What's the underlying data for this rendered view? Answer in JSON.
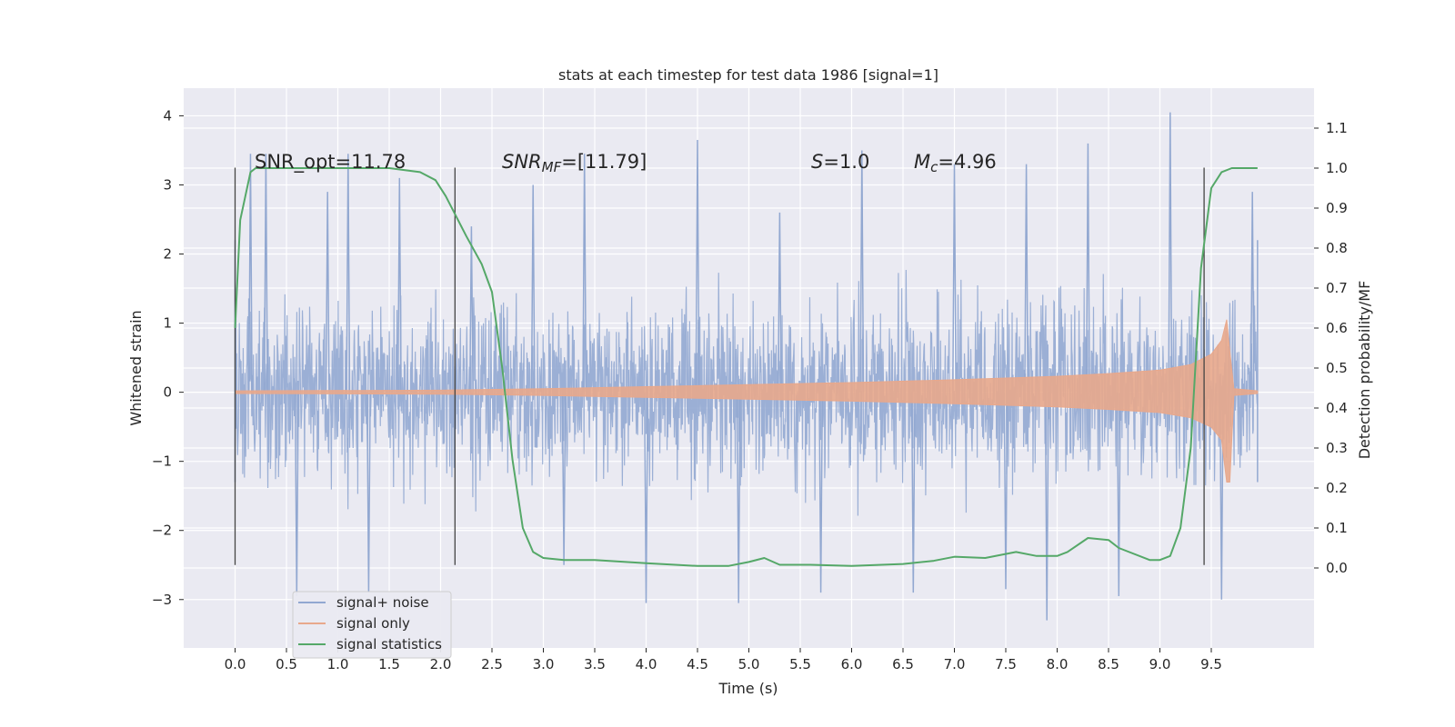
{
  "chart_data": {
    "type": "line",
    "title": "stats at each timestep for test data 1986 [signal=1]",
    "xlabel": "Time (s)",
    "ylabel": "Whitened strain",
    "ylabel_right": "Detection probability/MF",
    "xlim": [
      -0.5,
      10.5
    ],
    "ylim": [
      -3.7,
      4.4
    ],
    "ylim_right": [
      -0.2,
      1.2
    ],
    "x_ticks": [
      "0.0",
      "0.5",
      "1.0",
      "1.5",
      "2.0",
      "2.5",
      "3.0",
      "3.5",
      "4.0",
      "4.5",
      "5.0",
      "5.5",
      "6.0",
      "6.5",
      "7.0",
      "7.5",
      "8.0",
      "8.5",
      "9.0",
      "9.5"
    ],
    "x_tick_values": [
      0,
      0.5,
      1,
      1.5,
      2,
      2.5,
      3,
      3.5,
      4,
      4.5,
      5,
      5.5,
      6,
      6.5,
      7,
      7.5,
      8,
      8.5,
      9,
      9.5
    ],
    "y_ticks": [
      "−3",
      "−2",
      "−1",
      "0",
      "1",
      "2",
      "3",
      "4"
    ],
    "y_tick_values": [
      -3,
      -2,
      -1,
      0,
      1,
      2,
      3,
      4
    ],
    "y_ticks_right": [
      "0.0",
      "0.1",
      "0.2",
      "0.3",
      "0.4",
      "0.5",
      "0.6",
      "0.7",
      "0.8",
      "0.9",
      "1.0",
      "1.1"
    ],
    "y_tick_values_right": [
      0,
      0.1,
      0.2,
      0.3,
      0.4,
      0.5,
      0.6,
      0.7,
      0.8,
      0.9,
      1.0,
      1.1
    ],
    "grid": true,
    "legend_position": "lower-left",
    "series": [
      {
        "name": "signal+ noise",
        "color": "#92a8d1",
        "axis": "left",
        "x_range": [
          0,
          9.95
        ],
        "envelope_typical": 1.5,
        "extremes": [
          {
            "x": 0.15,
            "y": 3.45
          },
          {
            "x": 0.3,
            "y": 3.45
          },
          {
            "x": 0.9,
            "y": 2.9
          },
          {
            "x": 1.1,
            "y": 3.45
          },
          {
            "x": 1.6,
            "y": 3.1
          },
          {
            "x": 2.3,
            "y": 2.4
          },
          {
            "x": 2.9,
            "y": 3.0
          },
          {
            "x": 3.4,
            "y": 3.45
          },
          {
            "x": 4.5,
            "y": 3.65
          },
          {
            "x": 5.3,
            "y": 2.6
          },
          {
            "x": 6.1,
            "y": 3.5
          },
          {
            "x": 7.0,
            "y": 3.3
          },
          {
            "x": 7.7,
            "y": 3.3
          },
          {
            "x": 8.3,
            "y": 3.6
          },
          {
            "x": 9.1,
            "y": 4.05
          },
          {
            "x": 9.9,
            "y": 2.9
          },
          {
            "x": 0.6,
            "y": -2.95
          },
          {
            "x": 1.3,
            "y": -2.9
          },
          {
            "x": 3.2,
            "y": -2.5
          },
          {
            "x": 4.0,
            "y": -3.05
          },
          {
            "x": 4.9,
            "y": -3.05
          },
          {
            "x": 5.7,
            "y": -2.9
          },
          {
            "x": 6.6,
            "y": -2.9
          },
          {
            "x": 7.5,
            "y": -2.85
          },
          {
            "x": 7.9,
            "y": -3.3
          },
          {
            "x": 8.6,
            "y": -2.95
          },
          {
            "x": 9.6,
            "y": -3.0
          }
        ]
      },
      {
        "name": "signal only",
        "color": "#e8a88c",
        "axis": "left",
        "envelope": [
          {
            "x": 0.0,
            "y": 0.02
          },
          {
            "x": 2.0,
            "y": 0.03
          },
          {
            "x": 3.0,
            "y": 0.05
          },
          {
            "x": 4.0,
            "y": 0.08
          },
          {
            "x": 5.0,
            "y": 0.11
          },
          {
            "x": 6.0,
            "y": 0.14
          },
          {
            "x": 7.0,
            "y": 0.18
          },
          {
            "x": 8.0,
            "y": 0.23
          },
          {
            "x": 8.5,
            "y": 0.27
          },
          {
            "x": 9.0,
            "y": 0.32
          },
          {
            "x": 9.3,
            "y": 0.4
          },
          {
            "x": 9.5,
            "y": 0.55
          },
          {
            "x": 9.6,
            "y": 0.75
          },
          {
            "x": 9.65,
            "y": 1.05
          },
          {
            "x": 9.68,
            "y": 0.6
          },
          {
            "x": 9.72,
            "y": 0.05
          },
          {
            "x": 9.95,
            "y": 0.02
          }
        ]
      },
      {
        "name": "signal statistics",
        "color": "#55a868",
        "axis": "right",
        "x": [
          0.0,
          0.05,
          0.1,
          0.15,
          0.2,
          0.3,
          0.5,
          1.0,
          1.5,
          1.8,
          1.95,
          2.05,
          2.15,
          2.25,
          2.4,
          2.5,
          2.6,
          2.7,
          2.8,
          2.9,
          3.0,
          3.2,
          3.5,
          4.0,
          4.5,
          4.8,
          5.0,
          5.15,
          5.3,
          5.6,
          6.0,
          6.5,
          6.8,
          7.0,
          7.3,
          7.6,
          7.8,
          8.0,
          8.1,
          8.3,
          8.5,
          8.6,
          8.9,
          9.0,
          9.1,
          9.2,
          9.3,
          9.4,
          9.5,
          9.6,
          9.7,
          9.8,
          9.95
        ],
        "y": [
          0.6,
          0.87,
          0.93,
          0.99,
          1.0,
          1.0,
          1.0,
          1.0,
          1.0,
          0.99,
          0.97,
          0.93,
          0.88,
          0.83,
          0.76,
          0.69,
          0.5,
          0.27,
          0.1,
          0.04,
          0.025,
          0.02,
          0.02,
          0.012,
          0.005,
          0.005,
          0.015,
          0.025,
          0.008,
          0.008,
          0.005,
          0.01,
          0.018,
          0.028,
          0.025,
          0.04,
          0.03,
          0.03,
          0.04,
          0.075,
          0.07,
          0.05,
          0.02,
          0.02,
          0.03,
          0.1,
          0.3,
          0.75,
          0.95,
          0.99,
          1.0,
          1.0,
          1.0
        ]
      }
    ],
    "vlines": [
      {
        "x": 0.0,
        "ymin": -2.5,
        "ymax": 3.25
      },
      {
        "x": 2.14,
        "ymin": -2.5,
        "ymax": 3.25
      },
      {
        "x": 9.43,
        "ymin": -2.5,
        "ymax": 3.25
      }
    ],
    "annotations": {
      "snr_opt": "SNR_opt=11.78",
      "snr_mf_base": "SNR",
      "snr_mf_sub": "MF",
      "snr_mf_value": "=[11.79]",
      "s_label": "S",
      "s_value": "=1.0",
      "mc_label": "M",
      "mc_sub": "c",
      "mc_value": "=4.96"
    }
  }
}
